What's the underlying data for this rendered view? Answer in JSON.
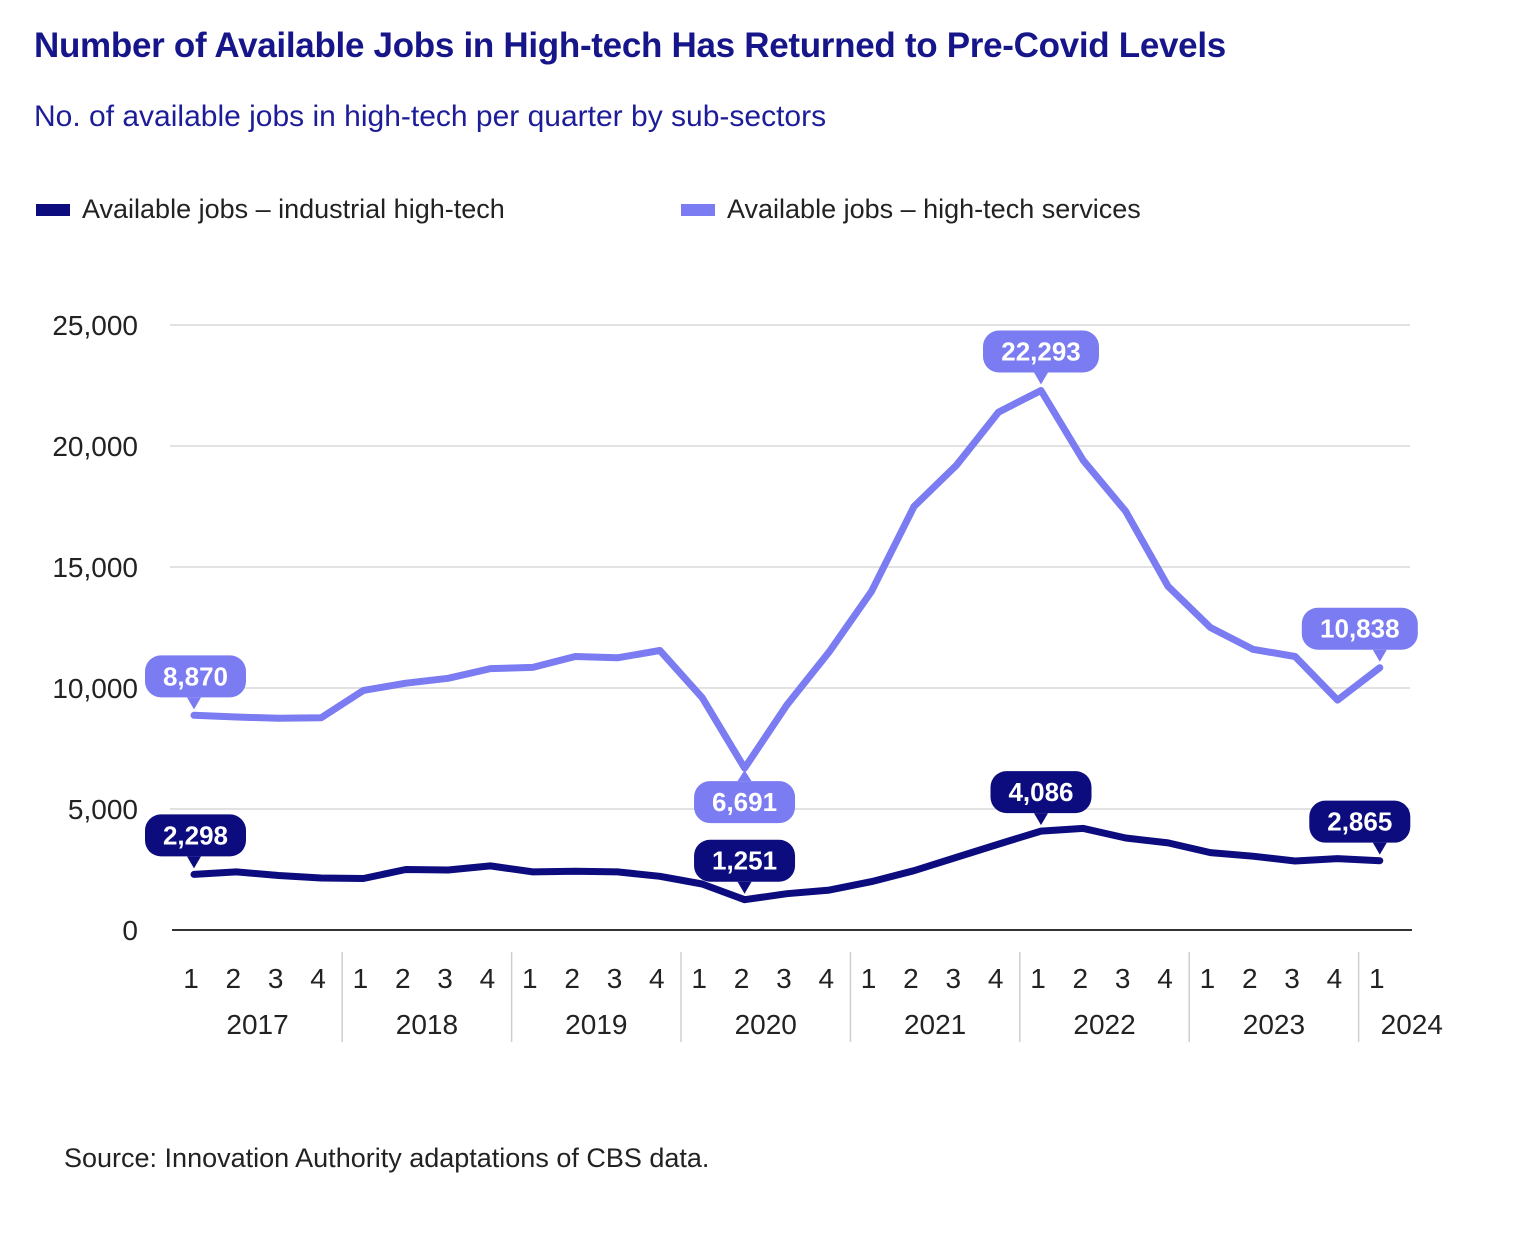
{
  "header": {
    "title": "Number of Available Jobs in High-tech Has Returned to Pre-Covid Levels",
    "subtitle": "No. of available jobs in high-tech per quarter by sub-sectors"
  },
  "source": "Source: Innovation Authority adaptations of CBS data.",
  "colors": {
    "industrial": "#0c0c7e",
    "services": "#7b7bf2",
    "grid": "#d9d9d9",
    "axis": "#333333",
    "separator": "#cfcfcf"
  },
  "chart_data": {
    "type": "line",
    "title": "Number of Available Jobs in High-tech Has Returned to Pre-Covid Levels",
    "subtitle": "No. of available jobs in high-tech per quarter by sub-sectors",
    "xlabel": "",
    "ylabel": "",
    "ylim": [
      0,
      25000
    ],
    "yticks": [
      0,
      5000,
      10000,
      15000,
      20000,
      25000
    ],
    "ytick_labels": [
      "0",
      "5,000",
      "10,000",
      "15,000",
      "20,000",
      "25,000"
    ],
    "grid": true,
    "legend_position": "top-left",
    "quarter_labels": [
      "1",
      "2",
      "3",
      "4",
      "1",
      "2",
      "3",
      "4",
      "1",
      "2",
      "3",
      "4",
      "1",
      "2",
      "3",
      "4",
      "1",
      "2",
      "3",
      "4",
      "1",
      "2",
      "3",
      "4",
      "1",
      "2",
      "3",
      "4",
      "1"
    ],
    "years": [
      {
        "label": "2017",
        "start": 0,
        "end": 3
      },
      {
        "label": "2018",
        "start": 4,
        "end": 7
      },
      {
        "label": "2019",
        "start": 8,
        "end": 11
      },
      {
        "label": "2020",
        "start": 12,
        "end": 15
      },
      {
        "label": "2021",
        "start": 16,
        "end": 19
      },
      {
        "label": "2022",
        "start": 20,
        "end": 23
      },
      {
        "label": "2023",
        "start": 24,
        "end": 27
      },
      {
        "label": "2024",
        "start": 28,
        "end": 28
      }
    ],
    "series": [
      {
        "name": "Available jobs – industrial high-tech",
        "key": "industrial",
        "values": [
          2298,
          2400,
          2250,
          2150,
          2130,
          2500,
          2480,
          2650,
          2400,
          2430,
          2400,
          2220,
          1900,
          1251,
          1500,
          1650,
          2000,
          2450,
          3000,
          3550,
          4086,
          4200,
          3800,
          3600,
          3200,
          3050,
          2850,
          2950,
          2865
        ],
        "annotations": [
          {
            "index": 0,
            "label": "2,298"
          },
          {
            "index": 13,
            "label": "1,251"
          },
          {
            "index": 20,
            "label": "4,086"
          },
          {
            "index": 28,
            "label": "2,865"
          }
        ]
      },
      {
        "name": "Available jobs – high-tech services",
        "key": "services",
        "values": [
          8870,
          8800,
          8750,
          8770,
          9900,
          10200,
          10400,
          10800,
          10850,
          11300,
          11250,
          11550,
          9600,
          6691,
          9300,
          11500,
          14000,
          17500,
          19200,
          21400,
          22293,
          19400,
          17300,
          14200,
          12500,
          11600,
          11300,
          9500,
          10838
        ],
        "annotations": [
          {
            "index": 0,
            "label": "8,870"
          },
          {
            "index": 13,
            "label": "6,691"
          },
          {
            "index": 20,
            "label": "22,293"
          },
          {
            "index": 28,
            "label": "10,838"
          }
        ]
      }
    ]
  }
}
